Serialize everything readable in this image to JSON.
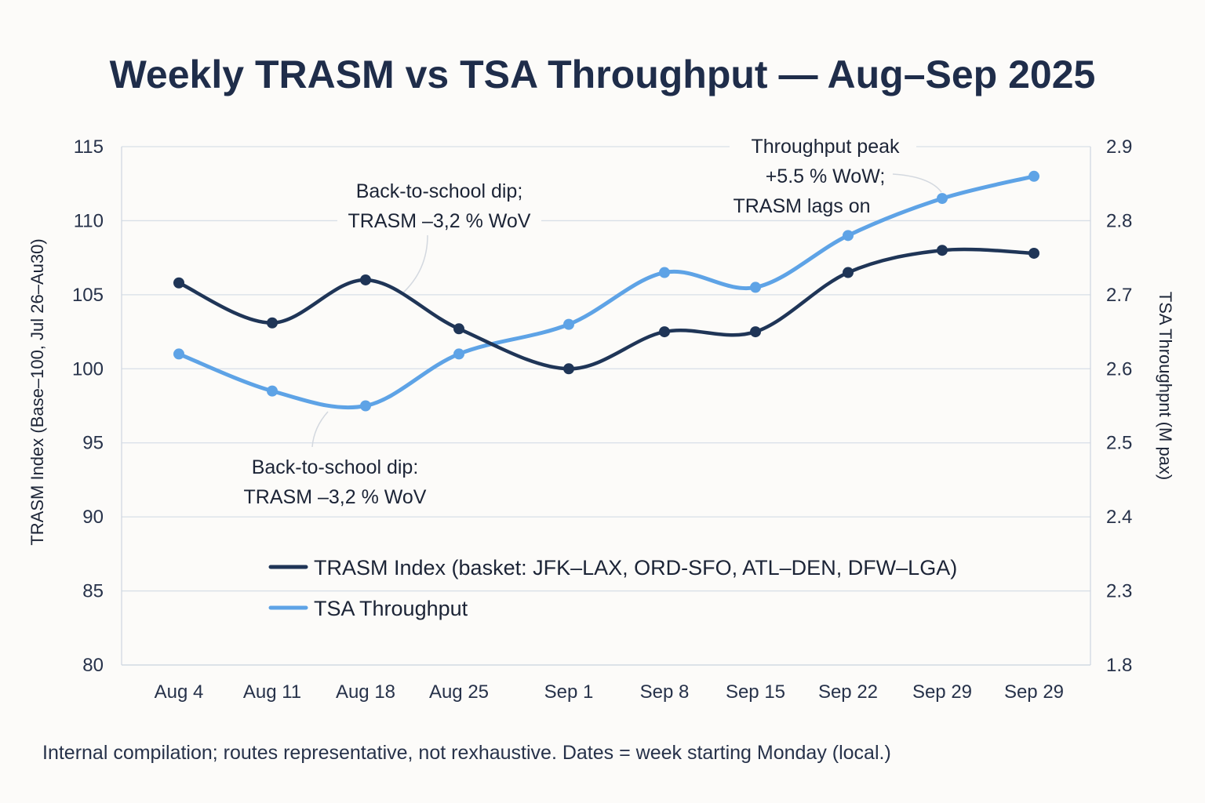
{
  "chart_data": {
    "type": "line",
    "title": "Weekly TRASM vs TSA Throughput — Aug–Sep 2025",
    "categories": [
      "Aug 4",
      "Aug 11",
      "Aug 18",
      "Aug 25",
      "Sep 1",
      "Sep 8",
      "Sep 15",
      "Sep 22",
      "Sep 29",
      "Sep 29"
    ],
    "ylabel": "TRASM Index (Base–100, Jul 26–Au30)",
    "ylabel_right": "TSA Throughpnt (M pax)",
    "ylim": [
      80,
      115
    ],
    "yticks": [
      "115",
      "110",
      "105",
      "100",
      "95",
      "90",
      "85",
      "80"
    ],
    "ylim_right": [
      1.8,
      2.9
    ],
    "yticks_right": [
      "2.9",
      "2.8",
      "2.7",
      "2.6",
      "2.5",
      "2.4",
      "2.3",
      "1.8"
    ],
    "grid": true,
    "series": [
      {
        "name": "TRASM Index (basket: JFK–LAX, ORD-SFO, ATL–DEN, DFW–LGA)",
        "axis": "left",
        "color": "#1f3557",
        "values": [
          105.8,
          103.1,
          106.0,
          102.7,
          100.0,
          102.5,
          102.5,
          106.5,
          108.0,
          107.8
        ]
      },
      {
        "name": "TSA Throughput",
        "axis": "right",
        "color": "#5ea3e6",
        "values": [
          2.62,
          2.57,
          2.55,
          2.62,
          2.66,
          2.73,
          2.71,
          2.78,
          2.83,
          2.86
        ]
      }
    ],
    "annotations": [
      {
        "lines": [
          "Back-to-school dip;",
          "TRASM –3,2 % WoV"
        ]
      },
      {
        "lines": [
          "Back-to-school dip:",
          "TRASM –3,2 % WoV"
        ]
      },
      {
        "lines": [
          "Throughput peak",
          "+5.5 % WoW;",
          "TRASM lags on"
        ]
      }
    ],
    "legend": "center-bottom",
    "footnote": "Internal compilation; routes representative, not rexhaustive.  Dates = week starting Monday (local.)"
  }
}
